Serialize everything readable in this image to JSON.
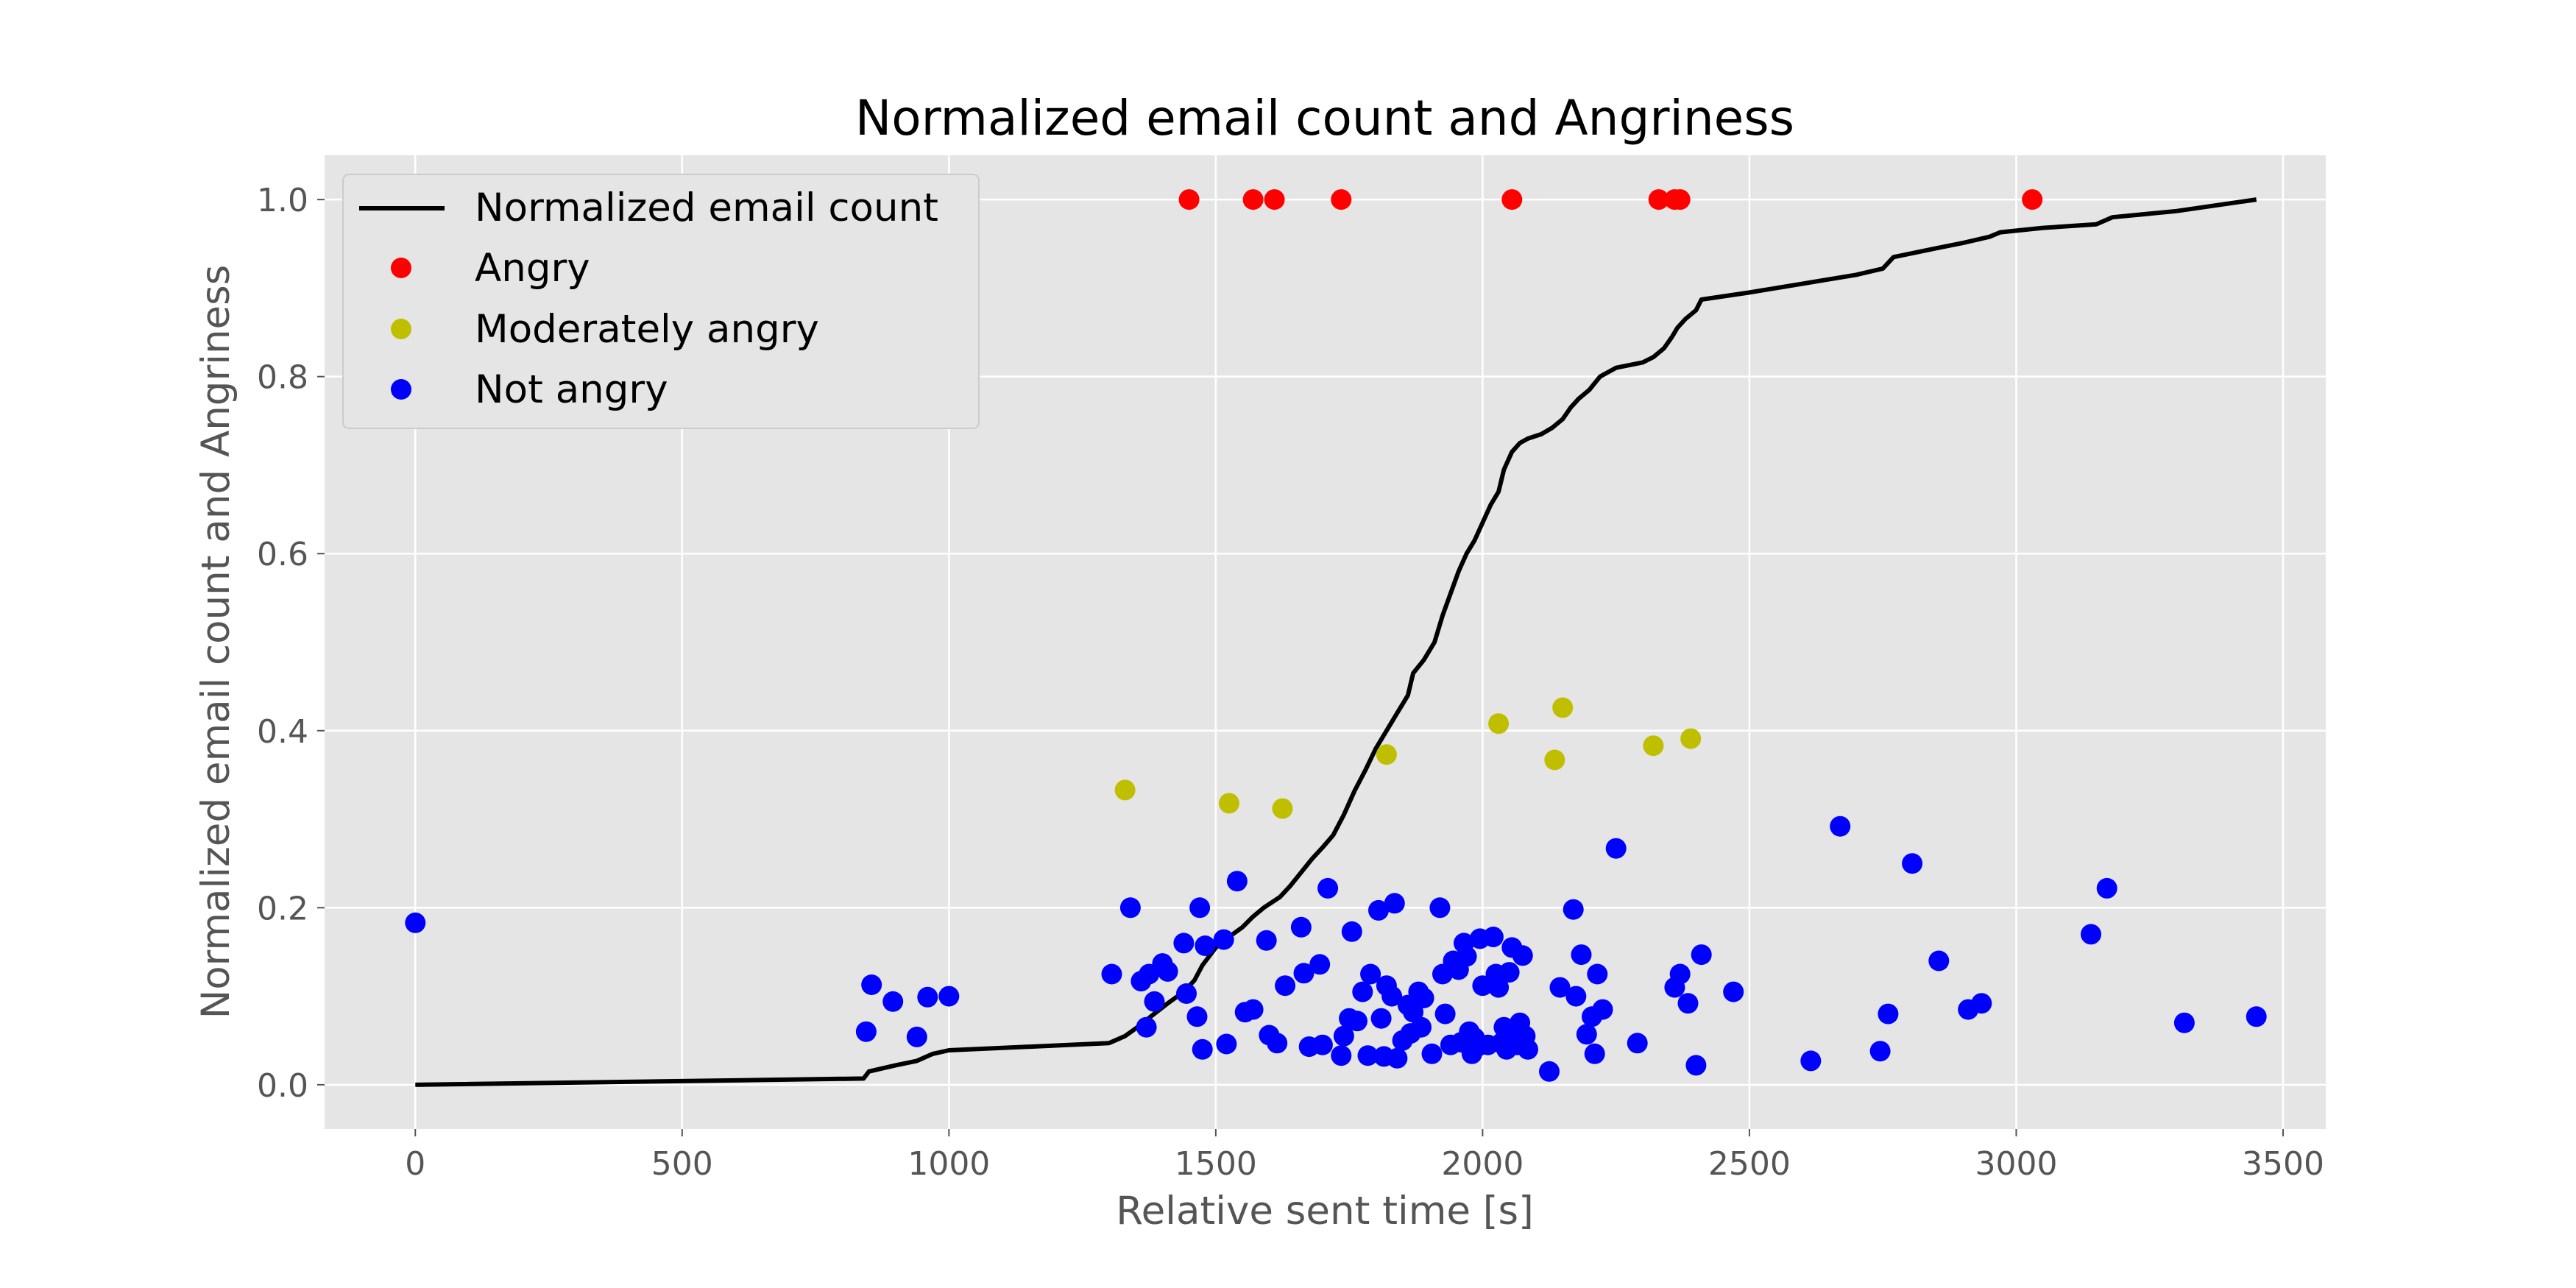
{
  "chart_data": {
    "type": "scatter",
    "title": "Normalized email count and Angriness",
    "xlabel": "Relative sent time [s]",
    "ylabel": "Normalized email count and Angriness",
    "xlim": [
      -170,
      3580
    ],
    "ylim": [
      -0.05,
      1.05
    ],
    "xticks": [
      0,
      500,
      1000,
      1500,
      2000,
      2500,
      3000,
      3500
    ],
    "yticks": [
      0.0,
      0.2,
      0.4,
      0.6,
      0.8,
      1.0
    ],
    "xtick_labels": [
      "0",
      "500",
      "1000",
      "1500",
      "2000",
      "2500",
      "3000",
      "3500"
    ],
    "ytick_labels": [
      "0.0",
      "0.2",
      "0.4",
      "0.6",
      "0.8",
      "1.0"
    ],
    "grid": true,
    "legend_position": "top-left",
    "legend": [
      {
        "label": "Normalized email count",
        "kind": "line",
        "color": "#000000"
      },
      {
        "label": "Angry",
        "kind": "marker",
        "color": "#ff0000"
      },
      {
        "label": "Moderately angry",
        "kind": "marker",
        "color": "#bfbf00"
      },
      {
        "label": "Not angry",
        "kind": "marker",
        "color": "#0000ff"
      }
    ],
    "colors": {
      "background": "#e5e5e5",
      "grid": "#ffffff",
      "line": "#000000"
    },
    "series": [
      {
        "name": "Normalized email count",
        "kind": "line",
        "color": "#000000",
        "points": [
          [
            0,
            0.0
          ],
          [
            840,
            0.007
          ],
          [
            850,
            0.015
          ],
          [
            900,
            0.022
          ],
          [
            940,
            0.027
          ],
          [
            970,
            0.035
          ],
          [
            1000,
            0.039
          ],
          [
            1300,
            0.047
          ],
          [
            1330,
            0.055
          ],
          [
            1360,
            0.068
          ],
          [
            1380,
            0.078
          ],
          [
            1410,
            0.092
          ],
          [
            1440,
            0.105
          ],
          [
            1460,
            0.118
          ],
          [
            1475,
            0.135
          ],
          [
            1500,
            0.155
          ],
          [
            1520,
            0.165
          ],
          [
            1550,
            0.178
          ],
          [
            1570,
            0.19
          ],
          [
            1590,
            0.2
          ],
          [
            1620,
            0.212
          ],
          [
            1640,
            0.225
          ],
          [
            1660,
            0.24
          ],
          [
            1680,
            0.255
          ],
          [
            1700,
            0.268
          ],
          [
            1720,
            0.282
          ],
          [
            1740,
            0.305
          ],
          [
            1760,
            0.332
          ],
          [
            1780,
            0.355
          ],
          [
            1800,
            0.38
          ],
          [
            1820,
            0.4
          ],
          [
            1840,
            0.42
          ],
          [
            1860,
            0.44
          ],
          [
            1870,
            0.465
          ],
          [
            1890,
            0.48
          ],
          [
            1910,
            0.5
          ],
          [
            1925,
            0.53
          ],
          [
            1940,
            0.555
          ],
          [
            1955,
            0.58
          ],
          [
            1970,
            0.6
          ],
          [
            1985,
            0.615
          ],
          [
            2000,
            0.635
          ],
          [
            2015,
            0.655
          ],
          [
            2030,
            0.67
          ],
          [
            2040,
            0.695
          ],
          [
            2055,
            0.715
          ],
          [
            2070,
            0.725
          ],
          [
            2085,
            0.73
          ],
          [
            2110,
            0.735
          ],
          [
            2130,
            0.742
          ],
          [
            2150,
            0.752
          ],
          [
            2165,
            0.765
          ],
          [
            2180,
            0.775
          ],
          [
            2200,
            0.785
          ],
          [
            2220,
            0.8
          ],
          [
            2250,
            0.81
          ],
          [
            2300,
            0.816
          ],
          [
            2320,
            0.822
          ],
          [
            2340,
            0.832
          ],
          [
            2355,
            0.845
          ],
          [
            2365,
            0.855
          ],
          [
            2380,
            0.865
          ],
          [
            2400,
            0.875
          ],
          [
            2410,
            0.887
          ],
          [
            2500,
            0.895
          ],
          [
            2600,
            0.905
          ],
          [
            2700,
            0.915
          ],
          [
            2750,
            0.922
          ],
          [
            2770,
            0.935
          ],
          [
            2850,
            0.945
          ],
          [
            2900,
            0.951
          ],
          [
            2950,
            0.958
          ],
          [
            2970,
            0.963
          ],
          [
            3050,
            0.968
          ],
          [
            3150,
            0.972
          ],
          [
            3180,
            0.98
          ],
          [
            3300,
            0.987
          ],
          [
            3450,
            1.0
          ]
        ]
      },
      {
        "name": "Angry",
        "kind": "scatter",
        "color": "#ff0000",
        "points": [
          [
            1450,
            1.0
          ],
          [
            1570,
            1.0
          ],
          [
            1610,
            1.0
          ],
          [
            1735,
            1.0
          ],
          [
            2055,
            1.0
          ],
          [
            2330,
            1.0
          ],
          [
            2360,
            1.0
          ],
          [
            2370,
            1.0
          ],
          [
            3030,
            1.0
          ]
        ]
      },
      {
        "name": "Moderately angry",
        "kind": "scatter",
        "color": "#bfbf00",
        "points": [
          [
            1330,
            0.333
          ],
          [
            1525,
            0.318
          ],
          [
            1625,
            0.312
          ],
          [
            1820,
            0.373
          ],
          [
            2030,
            0.408
          ],
          [
            2135,
            0.367
          ],
          [
            2150,
            0.426
          ],
          [
            2320,
            0.383
          ],
          [
            2390,
            0.391
          ]
        ]
      },
      {
        "name": "Not angry",
        "kind": "scatter",
        "color": "#0000ff",
        "points": [
          [
            0,
            0.183
          ],
          [
            845,
            0.06
          ],
          [
            855,
            0.113
          ],
          [
            895,
            0.094
          ],
          [
            940,
            0.054
          ],
          [
            960,
            0.099
          ],
          [
            1000,
            0.1
          ],
          [
            1305,
            0.125
          ],
          [
            1340,
            0.2
          ],
          [
            1360,
            0.117
          ],
          [
            1370,
            0.065
          ],
          [
            1375,
            0.125
          ],
          [
            1385,
            0.094
          ],
          [
            1400,
            0.137
          ],
          [
            1410,
            0.128
          ],
          [
            1440,
            0.16
          ],
          [
            1445,
            0.103
          ],
          [
            1465,
            0.077
          ],
          [
            1470,
            0.2
          ],
          [
            1475,
            0.04
          ],
          [
            1480,
            0.157
          ],
          [
            1515,
            0.164
          ],
          [
            1520,
            0.046
          ],
          [
            1540,
            0.23
          ],
          [
            1555,
            0.082
          ],
          [
            1570,
            0.085
          ],
          [
            1595,
            0.163
          ],
          [
            1600,
            0.056
          ],
          [
            1615,
            0.047
          ],
          [
            1630,
            0.112
          ],
          [
            1660,
            0.178
          ],
          [
            1665,
            0.126
          ],
          [
            1675,
            0.043
          ],
          [
            1695,
            0.136
          ],
          [
            1700,
            0.045
          ],
          [
            1710,
            0.222
          ],
          [
            1735,
            0.033
          ],
          [
            1740,
            0.055
          ],
          [
            1750,
            0.075
          ],
          [
            1755,
            0.173
          ],
          [
            1765,
            0.072
          ],
          [
            1775,
            0.105
          ],
          [
            1785,
            0.033
          ],
          [
            1790,
            0.125
          ],
          [
            1805,
            0.197
          ],
          [
            1810,
            0.075
          ],
          [
            1815,
            0.032
          ],
          [
            1820,
            0.112
          ],
          [
            1830,
            0.1
          ],
          [
            1835,
            0.205
          ],
          [
            1840,
            0.03
          ],
          [
            1850,
            0.05
          ],
          [
            1860,
            0.09
          ],
          [
            1865,
            0.058
          ],
          [
            1870,
            0.082
          ],
          [
            1880,
            0.105
          ],
          [
            1885,
            0.065
          ],
          [
            1890,
            0.098
          ],
          [
            1905,
            0.035
          ],
          [
            1920,
            0.2
          ],
          [
            1925,
            0.125
          ],
          [
            1930,
            0.08
          ],
          [
            1940,
            0.045
          ],
          [
            1945,
            0.14
          ],
          [
            1955,
            0.13
          ],
          [
            1960,
            0.048
          ],
          [
            1965,
            0.16
          ],
          [
            1970,
            0.145
          ],
          [
            1975,
            0.06
          ],
          [
            1980,
            0.035
          ],
          [
            1985,
            0.053
          ],
          [
            1990,
            0.043
          ],
          [
            1995,
            0.165
          ],
          [
            2000,
            0.112
          ],
          [
            2010,
            0.045
          ],
          [
            2020,
            0.167
          ],
          [
            2025,
            0.125
          ],
          [
            2030,
            0.11
          ],
          [
            2035,
            0.047
          ],
          [
            2040,
            0.065
          ],
          [
            2045,
            0.04
          ],
          [
            2050,
            0.127
          ],
          [
            2055,
            0.155
          ],
          [
            2060,
            0.06
          ],
          [
            2065,
            0.045
          ],
          [
            2070,
            0.07
          ],
          [
            2075,
            0.146
          ],
          [
            2080,
            0.055
          ],
          [
            2085,
            0.04
          ],
          [
            2125,
            0.015
          ],
          [
            2145,
            0.11
          ],
          [
            2170,
            0.198
          ],
          [
            2175,
            0.1
          ],
          [
            2185,
            0.147
          ],
          [
            2195,
            0.057
          ],
          [
            2205,
            0.077
          ],
          [
            2210,
            0.035
          ],
          [
            2215,
            0.125
          ],
          [
            2225,
            0.085
          ],
          [
            2250,
            0.267
          ],
          [
            2290,
            0.047
          ],
          [
            2360,
            0.11
          ],
          [
            2370,
            0.125
          ],
          [
            2385,
            0.092
          ],
          [
            2400,
            0.022
          ],
          [
            2410,
            0.147
          ],
          [
            2470,
            0.105
          ],
          [
            2615,
            0.027
          ],
          [
            2670,
            0.292
          ],
          [
            2745,
            0.038
          ],
          [
            2760,
            0.08
          ],
          [
            2805,
            0.25
          ],
          [
            2855,
            0.14
          ],
          [
            2910,
            0.085
          ],
          [
            2935,
            0.092
          ],
          [
            3140,
            0.17
          ],
          [
            3170,
            0.222
          ],
          [
            3315,
            0.07
          ],
          [
            3450,
            0.077
          ]
        ]
      }
    ]
  }
}
